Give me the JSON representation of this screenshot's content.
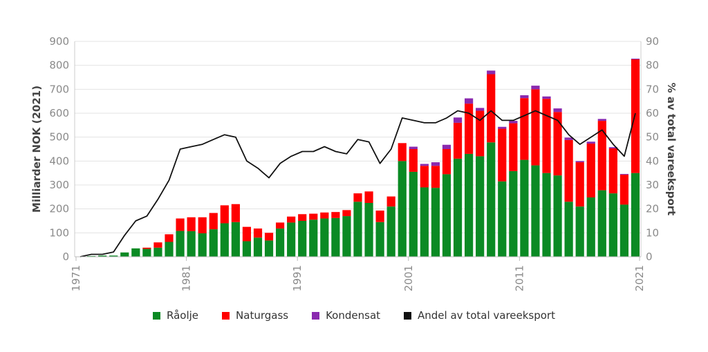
{
  "chart_data": {
    "type": "bar",
    "stacked": true,
    "title": "",
    "xlabel": "",
    "ylabel": "Milliarder NOK (2021)",
    "y2label": "% av total vareeksport",
    "ylim": [
      0,
      900
    ],
    "y2lim": [
      0,
      90
    ],
    "yticks": [
      0,
      100,
      200,
      300,
      400,
      500,
      600,
      700,
      800,
      900
    ],
    "y2ticks": [
      0,
      10,
      20,
      30,
      40,
      50,
      60,
      70,
      80,
      90
    ],
    "xticks": [
      "1971",
      "1981",
      "1991",
      "2001",
      "2011",
      "2021"
    ],
    "grid": "horizontal",
    "legend_position": "bottom",
    "years": [
      1971,
      1972,
      1973,
      1974,
      1975,
      1976,
      1977,
      1978,
      1979,
      1980,
      1981,
      1982,
      1983,
      1984,
      1985,
      1986,
      1987,
      1988,
      1989,
      1990,
      1991,
      1992,
      1993,
      1994,
      1995,
      1996,
      1997,
      1998,
      1999,
      2000,
      2001,
      2002,
      2003,
      2004,
      2005,
      2006,
      2007,
      2008,
      2009,
      2010,
      2011,
      2012,
      2013,
      2014,
      2015,
      2016,
      2017,
      2018,
      2019,
      2020,
      2021
    ],
    "series": [
      {
        "name": "Råolje",
        "color": "#0b8a24",
        "axis": "left",
        "values": [
          0,
          3,
          5,
          5,
          18,
          35,
          33,
          38,
          62,
          108,
          107,
          98,
          115,
          140,
          145,
          65,
          80,
          68,
          118,
          143,
          150,
          155,
          160,
          162,
          170,
          230,
          225,
          145,
          210,
          400,
          355,
          290,
          288,
          345,
          410,
          430,
          420,
          478,
          315,
          358,
          405,
          382,
          350,
          340,
          230,
          210,
          248,
          278,
          265,
          218,
          350
        ]
      },
      {
        "name": "Naturgass",
        "color": "#ff0000",
        "axis": "left",
        "values": [
          0,
          0,
          0,
          0,
          0,
          0,
          5,
          22,
          32,
          52,
          58,
          67,
          68,
          75,
          75,
          60,
          38,
          32,
          25,
          25,
          28,
          25,
          25,
          25,
          25,
          35,
          48,
          48,
          42,
          75,
          95,
          90,
          92,
          105,
          150,
          210,
          190,
          285,
          220,
          200,
          258,
          318,
          310,
          265,
          258,
          185,
          225,
          290,
          188,
          125,
          475
        ]
      },
      {
        "name": "Kondensat",
        "color": "#8a2aaf",
        "axis": "left",
        "values": [
          0,
          0,
          0,
          0,
          0,
          0,
          0,
          0,
          0,
          0,
          0,
          0,
          0,
          0,
          0,
          0,
          0,
          0,
          0,
          0,
          0,
          0,
          0,
          0,
          0,
          0,
          0,
          0,
          0,
          0,
          10,
          8,
          15,
          18,
          22,
          22,
          12,
          15,
          8,
          10,
          12,
          15,
          10,
          15,
          10,
          5,
          8,
          8,
          5,
          3,
          3
        ]
      },
      {
        "name": "Andel av total vareeksport",
        "color": "#111111",
        "axis": "right",
        "type": "line",
        "values": [
          0,
          1,
          1,
          2,
          9,
          15,
          17,
          24,
          32,
          45,
          46,
          47,
          49,
          51,
          50,
          40,
          37,
          33,
          39,
          42,
          44,
          44,
          46,
          44,
          43,
          49,
          48,
          39,
          45,
          58,
          57,
          56,
          56,
          58,
          61,
          60,
          57,
          61,
          57,
          57,
          59,
          61,
          59,
          57,
          51,
          47,
          50,
          53,
          47,
          42,
          60
        ]
      }
    ]
  }
}
